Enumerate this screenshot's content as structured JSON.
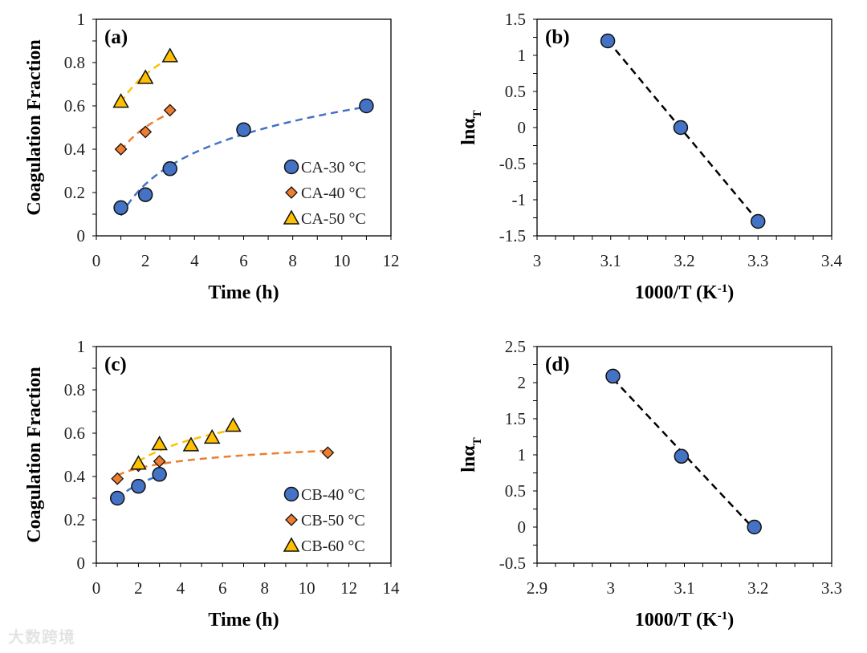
{
  "chart_data": [
    {
      "panel": "(a)",
      "type": "scatter",
      "xlabel": "Time (h)",
      "ylabel": "Coagulation Fraction",
      "xlim": [
        0,
        12
      ],
      "xticks": [
        0,
        2,
        4,
        6,
        8,
        10,
        12
      ],
      "xminor": 1,
      "ylim": [
        0,
        1
      ],
      "yticks": [
        0,
        0.2,
        0.4,
        0.6,
        0.8,
        1
      ],
      "yminor": 0.1,
      "legend_position": "bottom-right",
      "series": [
        {
          "name": "CA-30 °C",
          "marker": "circle",
          "color": "#4472C4",
          "trend": "log",
          "x": [
            1,
            2,
            3,
            6,
            11
          ],
          "y": [
            0.13,
            0.19,
            0.31,
            0.49,
            0.6
          ]
        },
        {
          "name": "CA-40 °C",
          "marker": "diamond",
          "color": "#ED7D31",
          "trend": "log",
          "x": [
            1,
            2,
            3
          ],
          "y": [
            0.4,
            0.48,
            0.58
          ]
        },
        {
          "name": "CA-50 °C",
          "marker": "triangle",
          "color": "#FFC000",
          "trend": "log",
          "x": [
            1,
            2,
            3
          ],
          "y": [
            0.62,
            0.73,
            0.83
          ]
        }
      ]
    },
    {
      "panel": "(b)",
      "type": "scatter",
      "xlabel": "1000/T (K",
      "xlabel_sup": "-1",
      "xlabel_end": ")",
      "ylabel": "lnα",
      "ylabel_sub": "T",
      "xlim": [
        3,
        3.4
      ],
      "xticks": [
        3,
        3.1,
        3.2,
        3.3,
        3.4
      ],
      "xminor": 0.025,
      "ylim": [
        -1.5,
        1.5
      ],
      "yticks": [
        -1.5,
        -1,
        -0.5,
        0,
        0.5,
        1,
        1.5
      ],
      "yminor": 0.25,
      "series": [
        {
          "name": "lnαT",
          "marker": "circle",
          "color": "#4472C4",
          "trend": "linear",
          "x": [
            3.096,
            3.195,
            3.3
          ],
          "y": [
            1.2,
            0.0,
            -1.3
          ]
        }
      ]
    },
    {
      "panel": "(c)",
      "type": "scatter",
      "xlabel": "Time (h)",
      "ylabel": "Coagulation Fraction",
      "xlim": [
        0,
        14
      ],
      "xticks": [
        0,
        2,
        4,
        6,
        8,
        10,
        12,
        14
      ],
      "xminor": 1,
      "ylim": [
        0,
        1
      ],
      "yticks": [
        0,
        0.2,
        0.4,
        0.6,
        0.8,
        1
      ],
      "yminor": 0.1,
      "legend_position": "bottom-right",
      "series": [
        {
          "name": "CB-40 °C",
          "marker": "circle",
          "color": "#4472C4",
          "trend": "log",
          "x": [
            1,
            2,
            3
          ],
          "y": [
            0.3,
            0.355,
            0.41
          ]
        },
        {
          "name": "CB-50 °C",
          "marker": "diamond",
          "color": "#ED7D31",
          "trend": "log",
          "x": [
            1,
            2,
            3,
            11
          ],
          "y": [
            0.39,
            0.45,
            0.47,
            0.51
          ]
        },
        {
          "name": "CB-60 °C",
          "marker": "triangle",
          "color": "#FFC000",
          "trend": "log",
          "x": [
            2,
            3,
            4.5,
            5.5,
            6.5
          ],
          "y": [
            0.46,
            0.55,
            0.545,
            0.58,
            0.635
          ]
        }
      ]
    },
    {
      "panel": "(d)",
      "type": "scatter",
      "xlabel": "1000/T (K",
      "xlabel_sup": "-1",
      "xlabel_end": ")",
      "ylabel": "lnα",
      "ylabel_sub": "T",
      "xlim": [
        2.9,
        3.3
      ],
      "xticks": [
        2.9,
        3,
        3.1,
        3.2,
        3.3
      ],
      "xminor": 0.025,
      "ylim": [
        -0.5,
        2.5
      ],
      "yticks": [
        -0.5,
        0,
        0.5,
        1,
        1.5,
        2,
        2.5
      ],
      "yminor": 0.25,
      "series": [
        {
          "name": "lnαT",
          "marker": "circle",
          "color": "#4472C4",
          "trend": "linear",
          "x": [
            3.003,
            3.096,
            3.195
          ],
          "y": [
            2.09,
            0.98,
            0.0
          ]
        }
      ]
    }
  ],
  "watermark": "大数跨境"
}
